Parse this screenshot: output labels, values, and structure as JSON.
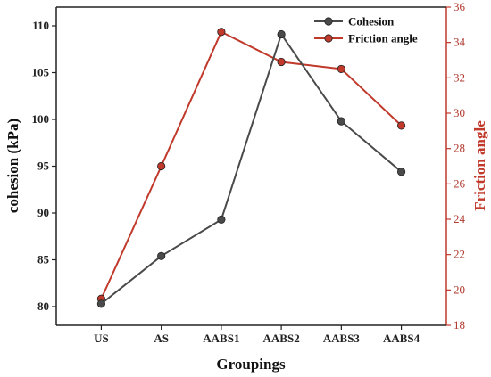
{
  "chart_data": {
    "type": "line",
    "categories": [
      "US",
      "AS",
      "AABS1",
      "AABS2",
      "AABS3",
      "AABS4"
    ],
    "xlabel": "Groupings",
    "series": [
      {
        "name": "Cohesion",
        "axis": "left",
        "color": "#4a4a4a",
        "values": [
          80.3,
          85.4,
          89.3,
          109.1,
          99.8,
          94.4
        ]
      },
      {
        "name": "Friction angle",
        "axis": "right",
        "color": "#c0392b",
        "values": [
          19.5,
          27.0,
          34.6,
          32.9,
          32.5,
          29.3
        ]
      }
    ],
    "y_left": {
      "label": "cohesion (kPa)",
      "ylim": [
        78,
        112
      ],
      "ticks": [
        80,
        85,
        90,
        95,
        100,
        105,
        110
      ]
    },
    "y_right": {
      "label": "Friction angle",
      "color": "#c0392b",
      "ylim": [
        18,
        36
      ],
      "ticks": [
        18,
        20,
        22,
        24,
        26,
        28,
        30,
        32,
        34,
        36
      ]
    },
    "legend_placement": "top-right",
    "grid": false
  }
}
